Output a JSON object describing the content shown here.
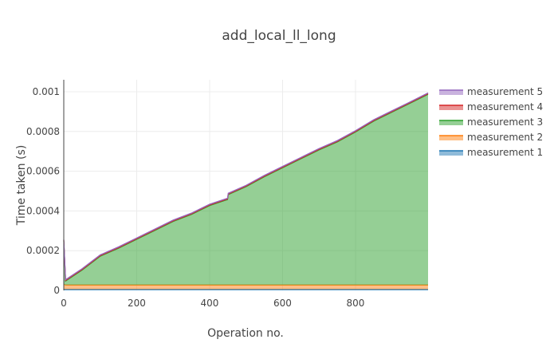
{
  "chart_data": {
    "type": "area",
    "stacked": true,
    "title": "add_local_ll_long",
    "xlabel": "Operation no.",
    "ylabel": "Time taken (s)",
    "xlim": [
      0,
      999
    ],
    "ylim": [
      0,
      0.00106
    ],
    "grid": true,
    "legend_position": "right",
    "x_ticks": [
      0,
      200,
      400,
      600,
      800
    ],
    "x_tick_labels": [
      "0",
      "200",
      "400",
      "600",
      "800"
    ],
    "y_ticks": [
      0,
      0.0002,
      0.0004,
      0.0006,
      0.0008,
      0.001
    ],
    "y_tick_labels": [
      "0",
      "0.0002",
      "0.0004",
      "0.0006",
      "0.0008",
      "0.001"
    ],
    "x": [
      0,
      5,
      50,
      100,
      150,
      200,
      250,
      300,
      350,
      400,
      449,
      451,
      500,
      550,
      600,
      650,
      700,
      750,
      800,
      850,
      900,
      950,
      999
    ],
    "series": [
      {
        "name": "measurement 1",
        "color": "#1f77b4",
        "values": [
          5e-06,
          5e-06,
          5e-06,
          5e-06,
          5e-06,
          5e-06,
          5e-06,
          5e-06,
          5e-06,
          5e-06,
          5e-06,
          5e-06,
          5e-06,
          5e-06,
          5e-06,
          5e-06,
          5e-06,
          5e-06,
          5e-06,
          5e-06,
          5e-06,
          5e-06,
          5e-06
        ]
      },
      {
        "name": "measurement 2",
        "color": "#ff7f0e",
        "values": [
          2.5e-05,
          2.2e-05,
          2.2e-05,
          2.2e-05,
          2.2e-05,
          2.2e-05,
          2.2e-05,
          2.2e-05,
          2.2e-05,
          2.2e-05,
          2.2e-05,
          2.2e-05,
          2.2e-05,
          2.2e-05,
          2.2e-05,
          2.2e-05,
          2.2e-05,
          2.2e-05,
          2.2e-05,
          2.2e-05,
          2.2e-05,
          2.2e-05,
          2.2e-05
        ]
      },
      {
        "name": "measurement 3",
        "color": "#2ca02c",
        "values": [
          0.00022,
          2e-05,
          7.5e-05,
          0.000145,
          0.000185,
          0.00023,
          0.000275,
          0.00032,
          0.000355,
          0.0004,
          0.00043,
          0.000455,
          0.000495,
          0.000545,
          0.00059,
          0.000635,
          0.00068,
          0.00072,
          0.00077,
          0.000825,
          0.00087,
          0.000915,
          0.00096
        ]
      },
      {
        "name": "measurement 4",
        "color": "#d62728",
        "values": [
          3e-06,
          3e-06,
          3e-06,
          3e-06,
          3e-06,
          3e-06,
          3e-06,
          3e-06,
          3e-06,
          3e-06,
          3e-06,
          3e-06,
          3e-06,
          3e-06,
          3e-06,
          3e-06,
          3e-06,
          3e-06,
          3e-06,
          3e-06,
          3e-06,
          3e-06,
          3e-06
        ]
      },
      {
        "name": "measurement 5",
        "color": "#9467bd",
        "values": [
          4e-06,
          4e-06,
          4e-06,
          4e-06,
          4e-06,
          4e-06,
          4e-06,
          4e-06,
          4e-06,
          4e-06,
          4e-06,
          4e-06,
          4e-06,
          4e-06,
          4e-06,
          4e-06,
          4e-06,
          4e-06,
          4e-06,
          4e-06,
          4e-06,
          4e-06,
          4e-06
        ]
      }
    ],
    "legend_order": [
      "measurement 5",
      "measurement 4",
      "measurement 3",
      "measurement 2",
      "measurement 1"
    ]
  }
}
